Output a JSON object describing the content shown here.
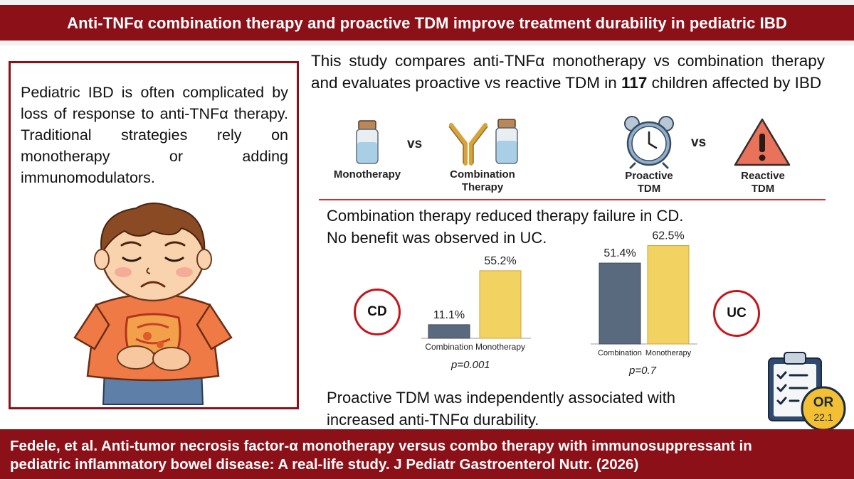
{
  "header": {
    "title": "Anti-TNFα combination therapy and proactive TDM improve treatment durability in pediatric IBD"
  },
  "intro": {
    "text": "Pediatric IBD is often complicated by loss of response to anti-TNFα therapy. Traditional strategies rely on monotherapy or adding immunomodulators."
  },
  "study": {
    "text_before": "This study compares anti-TNFα monotherapy vs combination therapy and evaluates proactive vs reactive TDM in ",
    "count": "117",
    "text_after": " children affected by IBD"
  },
  "comparisons": {
    "vs": "vs",
    "monotherapy": "Monotherapy",
    "combination_line1": "Combination",
    "combination_line2": "Therapy",
    "proactive_line1": "Proactive",
    "proactive_line2": "TDM",
    "reactive_line1": "Reactive",
    "reactive_line2": "TDM"
  },
  "findings": {
    "line1": "Combination therapy reduced therapy failure in CD.",
    "line2": "No benefit was observed in UC.",
    "tdm_line1": "Proactive TDM was independently associated with",
    "tdm_line2": "increased anti-TNFα durability."
  },
  "badge": {
    "label": "OR",
    "value": "22.1"
  },
  "citation": {
    "line1": "Fedele, et al. Anti-tumor necrosis factor-α monotherapy versus combo therapy with immunosuppressant in",
    "line2": "pediatric inflammatory bowel disease: A real-life study. J Pediatr Gastroenterol Nutr. (2026)"
  },
  "colors": {
    "brand": "#8b1018",
    "accent_red": "#c4161c",
    "bar_combination": "#5a6a7e",
    "bar_monotherapy": "#f2d362"
  },
  "chart_data": [
    {
      "type": "bar",
      "group_label": "CD",
      "categories": [
        "Combination",
        "Monotherapy"
      ],
      "values": [
        11.1,
        55.2
      ],
      "value_labels": [
        "11.1%",
        "55.2%"
      ],
      "pvalue": "p=0.001",
      "ylim": [
        0,
        65
      ]
    },
    {
      "type": "bar",
      "group_label": "UC",
      "categories": [
        "Combination",
        "Monotherapy"
      ],
      "values": [
        51.4,
        62.5
      ],
      "value_labels": [
        "51.4%",
        "62.5%"
      ],
      "pvalue": "p=0.7",
      "ylim": [
        0,
        65
      ]
    }
  ]
}
